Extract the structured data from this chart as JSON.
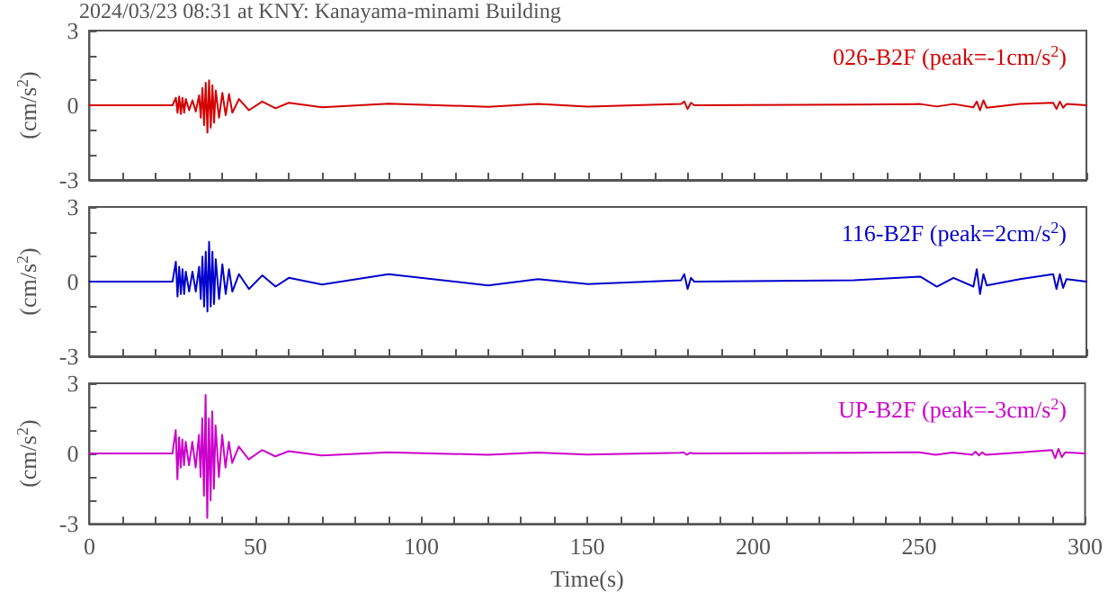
{
  "chart_data": [
    {
      "type": "line",
      "title": "2024/03/23 08:31 at KNY: Kanayama-minami Building",
      "ylabel": "(cm/s$^{2}$)",
      "legend": "top right",
      "grid": false,
      "marker": "none",
      "line_style": "solid",
      "tick_labels": "y",
      "x": [
        0,
        25,
        26,
        26.5,
        27,
        27.5,
        28,
        28.5,
        29,
        30,
        31,
        32,
        33,
        33.5,
        34,
        34.5,
        35,
        35.5,
        36,
        36.5,
        37,
        37.5,
        38,
        39,
        40,
        41,
        42,
        43,
        45,
        48,
        52,
        56,
        60,
        70,
        90,
        120,
        135,
        150,
        178,
        179,
        180,
        181,
        182,
        230,
        250,
        255,
        260,
        266,
        267,
        268,
        269,
        270,
        280,
        290,
        291,
        292,
        293,
        294,
        300
      ],
      "series": [
        {
          "name": "026-B2F (peak=-1cm/s$^{2}$)",
          "color": "#d40000",
          "values": [
            0,
            0,
            0.3,
            -0.3,
            0.35,
            -0.35,
            0.3,
            -0.3,
            0.25,
            -0.2,
            0.2,
            -0.25,
            0.4,
            -0.5,
            0.7,
            -0.8,
            0.9,
            -1.1,
            1.0,
            -0.9,
            0.8,
            -0.7,
            0.6,
            -0.5,
            0.5,
            -0.4,
            0.45,
            -0.3,
            0.25,
            -0.2,
            0.15,
            -0.12,
            0.1,
            -0.08,
            0.06,
            -0.06,
            0.05,
            -0.05,
            0.05,
            0.15,
            -0.15,
            0.1,
            0,
            0.03,
            0.05,
            -0.05,
            0.05,
            -0.08,
            0.15,
            -0.2,
            0.2,
            -0.1,
            0.05,
            0.1,
            -0.15,
            0.15,
            -0.1,
            0.05,
            0
          ]
        }
      ],
      "xlim": [
        0,
        300
      ],
      "xticks": [
        0,
        {
          "value": 10,
          "label": null
        },
        {
          "value": 20,
          "label": null
        },
        {
          "value": 30,
          "label": null
        },
        {
          "value": 40,
          "label": null
        },
        50,
        {
          "value": 60,
          "label": null
        },
        {
          "value": 70,
          "label": null
        },
        {
          "value": 80,
          "label": null
        },
        {
          "value": 90,
          "label": null
        },
        100,
        {
          "value": 110,
          "label": null
        },
        {
          "value": 120,
          "label": null
        },
        {
          "value": 130,
          "label": null
        },
        {
          "value": 140,
          "label": null
        },
        150,
        {
          "value": 160,
          "label": null
        },
        {
          "value": 170,
          "label": null
        },
        {
          "value": 180,
          "label": null
        },
        {
          "value": 190,
          "label": null
        },
        200,
        {
          "value": 210,
          "label": null
        },
        {
          "value": 220,
          "label": null
        },
        {
          "value": 230,
          "label": null
        },
        {
          "value": 240,
          "label": null
        },
        250,
        {
          "value": 260,
          "label": null
        },
        {
          "value": 270,
          "label": null
        },
        {
          "value": 280,
          "label": null
        },
        {
          "value": 290,
          "label": null
        },
        300
      ],
      "ylim": [
        -3,
        3
      ],
      "yticks": [
        -3,
        {
          "value": -2,
          "label": null
        },
        {
          "value": -1,
          "label": null
        },
        0,
        {
          "value": 1,
          "label": null
        },
        {
          "value": 2,
          "label": null
        },
        3
      ]
    },
    {
      "type": "line",
      "ylabel": "(cm/s$^{2}$)",
      "legend": "top right",
      "grid": false,
      "marker": "none",
      "line_style": "solid",
      "tick_labels": "y",
      "x": [
        0,
        25,
        26,
        26.5,
        27,
        27.5,
        28,
        28.5,
        29,
        30,
        31,
        32,
        33,
        33.5,
        34,
        34.5,
        35,
        35.5,
        36,
        36.5,
        37,
        37.5,
        38,
        39,
        40,
        41,
        42,
        43,
        45,
        48,
        52,
        56,
        60,
        70,
        90,
        120,
        135,
        150,
        178,
        179,
        180,
        181,
        182,
        230,
        250,
        255,
        260,
        266,
        267,
        268,
        269,
        270,
        280,
        290,
        291,
        292,
        293,
        294,
        300
      ],
      "series": [
        {
          "name": "116-B2F (peak=2cm/s$^{2}$)",
          "color": "#0000cc",
          "values": [
            0,
            0,
            0.8,
            -0.6,
            0.6,
            -0.5,
            0.5,
            -0.5,
            0.4,
            -0.4,
            0.4,
            -0.4,
            0.6,
            -0.7,
            1.0,
            -1.0,
            1.2,
            -1.2,
            1.6,
            -1.0,
            1.2,
            -0.9,
            0.9,
            -0.7,
            0.7,
            -0.5,
            0.5,
            -0.4,
            0.3,
            -0.3,
            0.25,
            -0.2,
            0.15,
            -0.12,
            0.3,
            -0.15,
            0.1,
            -0.1,
            0.05,
            0.3,
            -0.3,
            0.15,
            0,
            0.05,
            0.2,
            -0.2,
            0.15,
            -0.2,
            0.5,
            -0.5,
            0.3,
            -0.15,
            0.1,
            0.3,
            -0.3,
            0.3,
            -0.25,
            0.1,
            0
          ]
        }
      ],
      "xlim": [
        0,
        300
      ],
      "xticks": [
        0,
        {
          "value": 10,
          "label": null
        },
        {
          "value": 20,
          "label": null
        },
        {
          "value": 30,
          "label": null
        },
        {
          "value": 40,
          "label": null
        },
        50,
        {
          "value": 60,
          "label": null
        },
        {
          "value": 70,
          "label": null
        },
        {
          "value": 80,
          "label": null
        },
        {
          "value": 90,
          "label": null
        },
        100,
        {
          "value": 110,
          "label": null
        },
        {
          "value": 120,
          "label": null
        },
        {
          "value": 130,
          "label": null
        },
        {
          "value": 140,
          "label": null
        },
        150,
        {
          "value": 160,
          "label": null
        },
        {
          "value": 170,
          "label": null
        },
        {
          "value": 180,
          "label": null
        },
        {
          "value": 190,
          "label": null
        },
        200,
        {
          "value": 210,
          "label": null
        },
        {
          "value": 220,
          "label": null
        },
        {
          "value": 230,
          "label": null
        },
        {
          "value": 240,
          "label": null
        },
        250,
        {
          "value": 260,
          "label": null
        },
        {
          "value": 270,
          "label": null
        },
        {
          "value": 280,
          "label": null
        },
        {
          "value": 290,
          "label": null
        },
        300
      ],
      "ylim": [
        -3,
        3
      ],
      "yticks": [
        -3,
        {
          "value": -2,
          "label": null
        },
        {
          "value": -1,
          "label": null
        },
        0,
        {
          "value": 1,
          "label": null
        },
        {
          "value": 2,
          "label": null
        },
        3
      ]
    },
    {
      "type": "line",
      "ylabel": "(cm/s$^{2}$)",
      "xlabel": "Time(s)",
      "legend": "top right",
      "grid": false,
      "marker": "none",
      "line_style": "solid",
      "x": [
        0,
        25,
        26,
        26.5,
        27,
        27.5,
        28,
        28.5,
        29,
        30,
        31,
        32,
        33,
        33.5,
        34,
        34.5,
        35,
        35.5,
        36,
        36.5,
        37,
        37.5,
        38,
        39,
        40,
        41,
        42,
        43,
        45,
        48,
        52,
        56,
        60,
        70,
        90,
        120,
        135,
        150,
        178,
        179,
        180,
        181,
        182,
        230,
        250,
        255,
        260,
        266,
        267,
        268,
        269,
        270,
        280,
        290,
        291,
        292,
        293,
        294,
        300
      ],
      "series": [
        {
          "name": "UP-B2F (peak=-3cm/s$^{2}$)",
          "color": "#cc00cc",
          "values": [
            0,
            0,
            1.0,
            -1.1,
            0.7,
            -0.6,
            0.6,
            -0.5,
            0.5,
            -0.5,
            0.5,
            -0.6,
            0.8,
            -1.0,
            1.5,
            -1.8,
            2.5,
            -2.75,
            1.5,
            -2.0,
            1.8,
            -1.5,
            1.2,
            -1.0,
            0.8,
            -0.6,
            0.5,
            -0.4,
            0.3,
            -0.25,
            0.15,
            -0.12,
            0.1,
            -0.08,
            0.05,
            -0.05,
            0.04,
            -0.04,
            0.03,
            0.05,
            -0.05,
            0.03,
            0,
            0.03,
            0.05,
            -0.05,
            0.04,
            -0.05,
            0.08,
            -0.08,
            0.05,
            -0.05,
            0.04,
            0.15,
            -0.2,
            0.2,
            -0.15,
            0.05,
            0
          ]
        }
      ],
      "xlim": [
        0,
        300
      ],
      "xticks": [
        0,
        {
          "value": 10,
          "label": null
        },
        {
          "value": 20,
          "label": null
        },
        {
          "value": 30,
          "label": null
        },
        {
          "value": 40,
          "label": null
        },
        50,
        {
          "value": 60,
          "label": null
        },
        {
          "value": 70,
          "label": null
        },
        {
          "value": 80,
          "label": null
        },
        {
          "value": 90,
          "label": null
        },
        100,
        {
          "value": 110,
          "label": null
        },
        {
          "value": 120,
          "label": null
        },
        {
          "value": 130,
          "label": null
        },
        {
          "value": 140,
          "label": null
        },
        150,
        {
          "value": 160,
          "label": null
        },
        {
          "value": 170,
          "label": null
        },
        {
          "value": 180,
          "label": null
        },
        {
          "value": 190,
          "label": null
        },
        200,
        {
          "value": 210,
          "label": null
        },
        {
          "value": 220,
          "label": null
        },
        {
          "value": 230,
          "label": null
        },
        {
          "value": 240,
          "label": null
        },
        250,
        {
          "value": 260,
          "label": null
        },
        {
          "value": 270,
          "label": null
        },
        {
          "value": 280,
          "label": null
        },
        {
          "value": 290,
          "label": null
        },
        300
      ],
      "ylim": [
        -3,
        3
      ],
      "yticks": [
        -3,
        {
          "value": -2,
          "label": null
        },
        {
          "value": -1,
          "label": null
        },
        0,
        {
          "value": 1,
          "label": null
        },
        {
          "value": 2,
          "label": null
        },
        3
      ]
    }
  ]
}
